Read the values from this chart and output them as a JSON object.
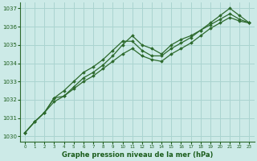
{
  "title": "Graphe pression niveau de la mer (hPa)",
  "bg_color": "#cceae7",
  "grid_color": "#aad4d0",
  "line_color": "#2d6a2d",
  "text_color": "#1a5c1a",
  "xlim": [
    -0.5,
    23.5
  ],
  "ylim": [
    1029.7,
    1037.3
  ],
  "xticks": [
    0,
    1,
    2,
    3,
    4,
    5,
    6,
    7,
    8,
    9,
    10,
    11,
    12,
    13,
    14,
    15,
    16,
    17,
    18,
    19,
    20,
    21,
    22,
    23
  ],
  "yticks": [
    1030,
    1031,
    1032,
    1033,
    1034,
    1035,
    1036,
    1037
  ],
  "series1": [
    1030.2,
    1030.8,
    1031.3,
    1032.1,
    1032.2,
    1032.7,
    1033.2,
    1033.5,
    1033.9,
    1034.4,
    1035.0,
    1035.5,
    1035.0,
    1034.8,
    1034.5,
    1035.0,
    1035.3,
    1035.5,
    1035.8,
    1036.2,
    1036.6,
    1037.0,
    1036.6,
    1036.2
  ],
  "series2": [
    1030.2,
    1030.8,
    1031.3,
    1032.1,
    1032.5,
    1033.0,
    1033.5,
    1033.8,
    1034.2,
    1034.7,
    1035.2,
    1035.2,
    1034.7,
    1034.4,
    1034.4,
    1034.8,
    1035.1,
    1035.4,
    1035.8,
    1036.1,
    1036.4,
    1036.7,
    1036.4,
    1036.2
  ],
  "series3": [
    1030.2,
    1030.8,
    1031.3,
    1031.9,
    1032.2,
    1032.6,
    1033.0,
    1033.3,
    1033.7,
    1034.1,
    1034.5,
    1034.8,
    1034.4,
    1034.2,
    1034.1,
    1034.5,
    1034.8,
    1035.1,
    1035.5,
    1035.9,
    1036.2,
    1036.5,
    1036.3,
    1036.2
  ]
}
